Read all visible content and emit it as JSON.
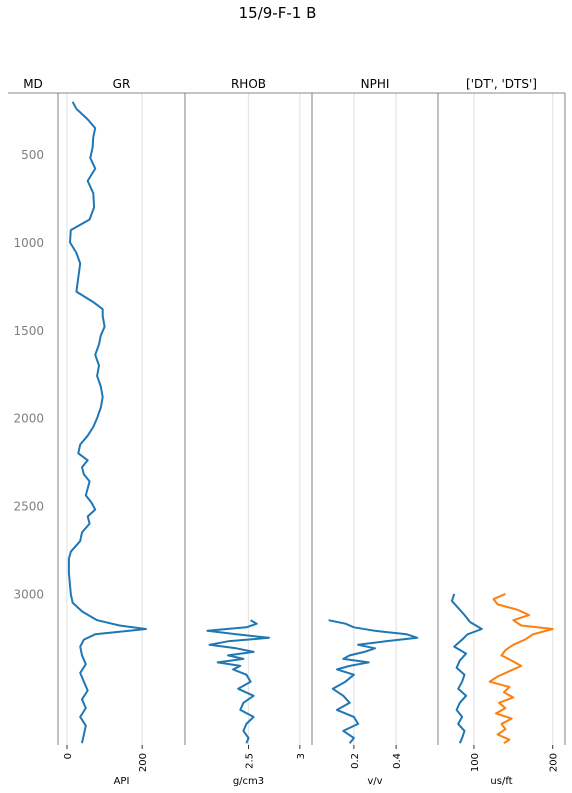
{
  "figure_title": "15/9-F-1 B",
  "depth_label": "MD",
  "chart_data": {
    "type": "line",
    "depth_axis": {
      "label": "MD",
      "range": [
        150,
        3860
      ],
      "ticks": [
        500,
        1000,
        1500,
        2000,
        2500,
        3000
      ]
    },
    "tracks": [
      {
        "title": "GR",
        "unit": "API",
        "range": [
          -8,
          298
        ],
        "ticks": [
          0,
          200
        ],
        "series": [
          {
            "color": "#1f77b4",
            "depth": [
              200,
              240,
              300,
              350,
              400,
              460,
              520,
              580,
              650,
              720,
              800,
              870,
              930,
              1000,
              1060,
              1120,
              1200,
              1280,
              1340,
              1380,
              1420,
              1480,
              1530,
              1580,
              1640,
              1700,
              1760,
              1820,
              1880,
              1940,
              2000,
              2050,
              2100,
              2150,
              2200,
              2240,
              2280,
              2320,
              2360,
              2400,
              2440,
              2480,
              2520,
              2560,
              2600,
              2650,
              2700,
              2760,
              2800,
              2880,
              2950,
              3000,
              3050,
              3100,
              3150,
              3180,
              3200,
              3230,
              3260,
              3300,
              3350,
              3400,
              3450,
              3500,
              3550,
              3600,
              3650,
              3700,
              3750,
              3800,
              3850
            ],
            "values": [
              15,
              25,
              55,
              75,
              70,
              68,
              62,
              75,
              55,
              70,
              72,
              60,
              10,
              8,
              25,
              35,
              30,
              25,
              70,
              95,
              95,
              100,
              90,
              85,
              75,
              85,
              80,
              90,
              95,
              90,
              80,
              70,
              55,
              35,
              30,
              55,
              40,
              45,
              60,
              55,
              50,
              65,
              75,
              55,
              60,
              40,
              35,
              10,
              5,
              5,
              8,
              10,
              15,
              40,
              80,
              140,
              210,
              75,
              45,
              35,
              40,
              50,
              35,
              45,
              55,
              40,
              50,
              35,
              50,
              45,
              40
            ]
          }
        ]
      },
      {
        "title": "RHOB",
        "unit": "g/cm3",
        "range": [
          1.94,
          3.06
        ],
        "ticks": [
          2.5,
          3.0
        ],
        "series": [
          {
            "color": "#1f77b4",
            "depth": [
              3150,
              3170,
              3190,
              3210,
              3230,
              3250,
              3270,
              3290,
              3310,
              3330,
              3350,
              3370,
              3390,
              3410,
              3430,
              3460,
              3500,
              3540,
              3580,
              3620,
              3660,
              3700,
              3740,
              3780,
              3820,
              3850
            ],
            "values": [
              2.52,
              2.58,
              2.48,
              2.1,
              2.38,
              2.7,
              2.3,
              2.12,
              2.38,
              2.55,
              2.3,
              2.45,
              2.2,
              2.42,
              2.35,
              2.48,
              2.52,
              2.4,
              2.55,
              2.45,
              2.42,
              2.55,
              2.48,
              2.45,
              2.5,
              2.48
            ]
          }
        ]
      },
      {
        "title": "NPHI",
        "unit": "v/v",
        "range": [
          0.03,
          0.57
        ],
        "ticks": [
          0.2,
          0.4
        ],
        "series": [
          {
            "color": "#1f77b4",
            "depth": [
              3150,
              3170,
              3190,
              3210,
              3230,
              3250,
              3270,
              3290,
              3310,
              3330,
              3350,
              3370,
              3390,
              3410,
              3430,
              3460,
              3500,
              3540,
              3580,
              3620,
              3660,
              3700,
              3740,
              3780,
              3820,
              3850
            ],
            "values": [
              0.08,
              0.16,
              0.2,
              0.3,
              0.45,
              0.5,
              0.35,
              0.22,
              0.3,
              0.25,
              0.18,
              0.15,
              0.27,
              0.18,
              0.12,
              0.2,
              0.16,
              0.1,
              0.15,
              0.18,
              0.12,
              0.2,
              0.22,
              0.15,
              0.2,
              0.18
            ]
          }
        ]
      },
      {
        "title": "['DT', 'DTS']",
        "unit": "us/ft",
        "range": [
          62,
          208
        ],
        "ticks": [
          100,
          200
        ],
        "series": [
          {
            "color": "#1f77b4",
            "depth": [
              3000,
              3040,
              3080,
              3120,
              3160,
              3200,
              3230,
              3260,
              3300,
              3340,
              3380,
              3420,
              3460,
              3500,
              3540,
              3580,
              3620,
              3660,
              3700,
              3740,
              3780,
              3820,
              3850
            ],
            "values": [
              75,
              72,
              80,
              88,
              95,
              110,
              92,
              85,
              75,
              90,
              82,
              78,
              88,
              85,
              80,
              90,
              82,
              78,
              85,
              80,
              88,
              85,
              82
            ]
          },
          {
            "color": "#ff7f0e",
            "depth": [
              3000,
              3030,
              3060,
              3090,
              3120,
              3150,
              3180,
              3200,
              3230,
              3260,
              3290,
              3320,
              3350,
              3380,
              3410,
              3440,
              3470,
              3500,
              3530,
              3560,
              3590,
              3620,
              3650,
              3680,
              3710,
              3740,
              3770,
              3800,
              3830,
              3850
            ],
            "values": [
              140,
              125,
              130,
              155,
              170,
              150,
              160,
              200,
              175,
              165,
              150,
              140,
              135,
              148,
              160,
              145,
              130,
              120,
              145,
              138,
              150,
              132,
              140,
              128,
              148,
              135,
              140,
              130,
              145,
              138
            ]
          }
        ]
      }
    ]
  }
}
